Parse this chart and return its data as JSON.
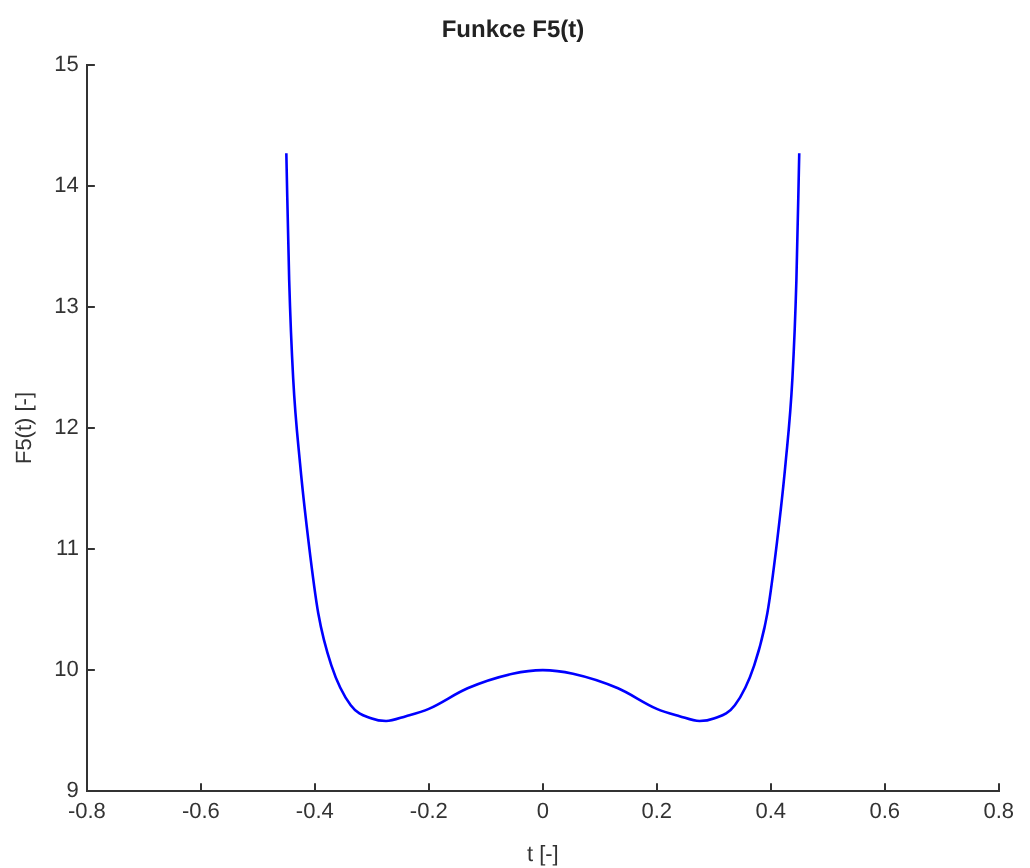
{
  "chart_data": {
    "type": "line",
    "title": "Funkce F5(t)",
    "xlabel": "t [-]",
    "ylabel": "F5(t) [-]",
    "series": [
      {
        "color": "#0000ff",
        "x": [
          -0.45,
          -0.445,
          -0.438,
          -0.426,
          -0.411,
          -0.394,
          -0.371,
          -0.337,
          -0.3,
          -0.275,
          -0.24,
          -0.2,
          -0.132,
          -0.053,
          0,
          0.053,
          0.132,
          0.2,
          0.24,
          0.275,
          0.3,
          0.337,
          0.371,
          0.394,
          0.411,
          0.426,
          0.438,
          0.445,
          0.45
        ],
        "values": [
          14.27,
          13.22,
          12.41,
          11.71,
          11.06,
          10.47,
          10.04,
          9.71,
          9.6,
          9.58,
          9.62,
          9.68,
          9.85,
          9.97,
          10,
          9.97,
          9.85,
          9.68,
          9.62,
          9.58,
          9.6,
          9.71,
          10.04,
          10.47,
          11.06,
          11.71,
          12.41,
          13.22,
          14.27
        ]
      }
    ],
    "xlim": [
      -0.8,
      0.8
    ],
    "xticks": [
      -0.8,
      -0.6,
      -0.4,
      -0.2,
      0,
      0.2,
      0.4,
      0.6,
      0.8
    ],
    "ylim": [
      9,
      15
    ],
    "yticks": [
      9,
      10,
      11,
      12,
      13,
      14,
      15
    ],
    "grid": false,
    "legend": false,
    "marker": "none",
    "line_style": "solid"
  }
}
